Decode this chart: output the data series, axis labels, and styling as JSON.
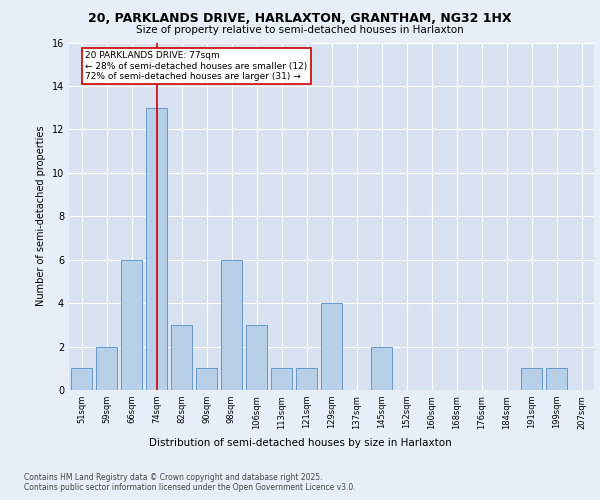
{
  "title1": "20, PARKLANDS DRIVE, HARLAXTON, GRANTHAM, NG32 1HX",
  "title2": "Size of property relative to semi-detached houses in Harlaxton",
  "xlabel": "Distribution of semi-detached houses by size in Harlaxton",
  "ylabel": "Number of semi-detached properties",
  "categories": [
    "51sqm",
    "59sqm",
    "66sqm",
    "74sqm",
    "82sqm",
    "90sqm",
    "98sqm",
    "106sqm",
    "113sqm",
    "121sqm",
    "129sqm",
    "137sqm",
    "145sqm",
    "152sqm",
    "160sqm",
    "168sqm",
    "176sqm",
    "184sqm",
    "191sqm",
    "199sqm",
    "207sqm"
  ],
  "values": [
    1,
    2,
    6,
    13,
    3,
    1,
    6,
    3,
    1,
    1,
    4,
    0,
    2,
    0,
    0,
    0,
    0,
    0,
    1,
    1,
    0
  ],
  "bar_color": "#b8cfe8",
  "bar_edge_color": "#6699cc",
  "highlight_color": "#cc0000",
  "highlight_index": 3,
  "annotation_text": "20 PARKLANDS DRIVE: 77sqm\n← 28% of semi-detached houses are smaller (12)\n72% of semi-detached houses are larger (31) →",
  "ylim": [
    0,
    16
  ],
  "yticks": [
    0,
    2,
    4,
    6,
    8,
    10,
    12,
    14,
    16
  ],
  "footer": "Contains HM Land Registry data © Crown copyright and database right 2025.\nContains public sector information licensed under the Open Government Licence v3.0.",
  "bg_color": "#e8eef7",
  "plot_bg_color": "#d8e2f0"
}
